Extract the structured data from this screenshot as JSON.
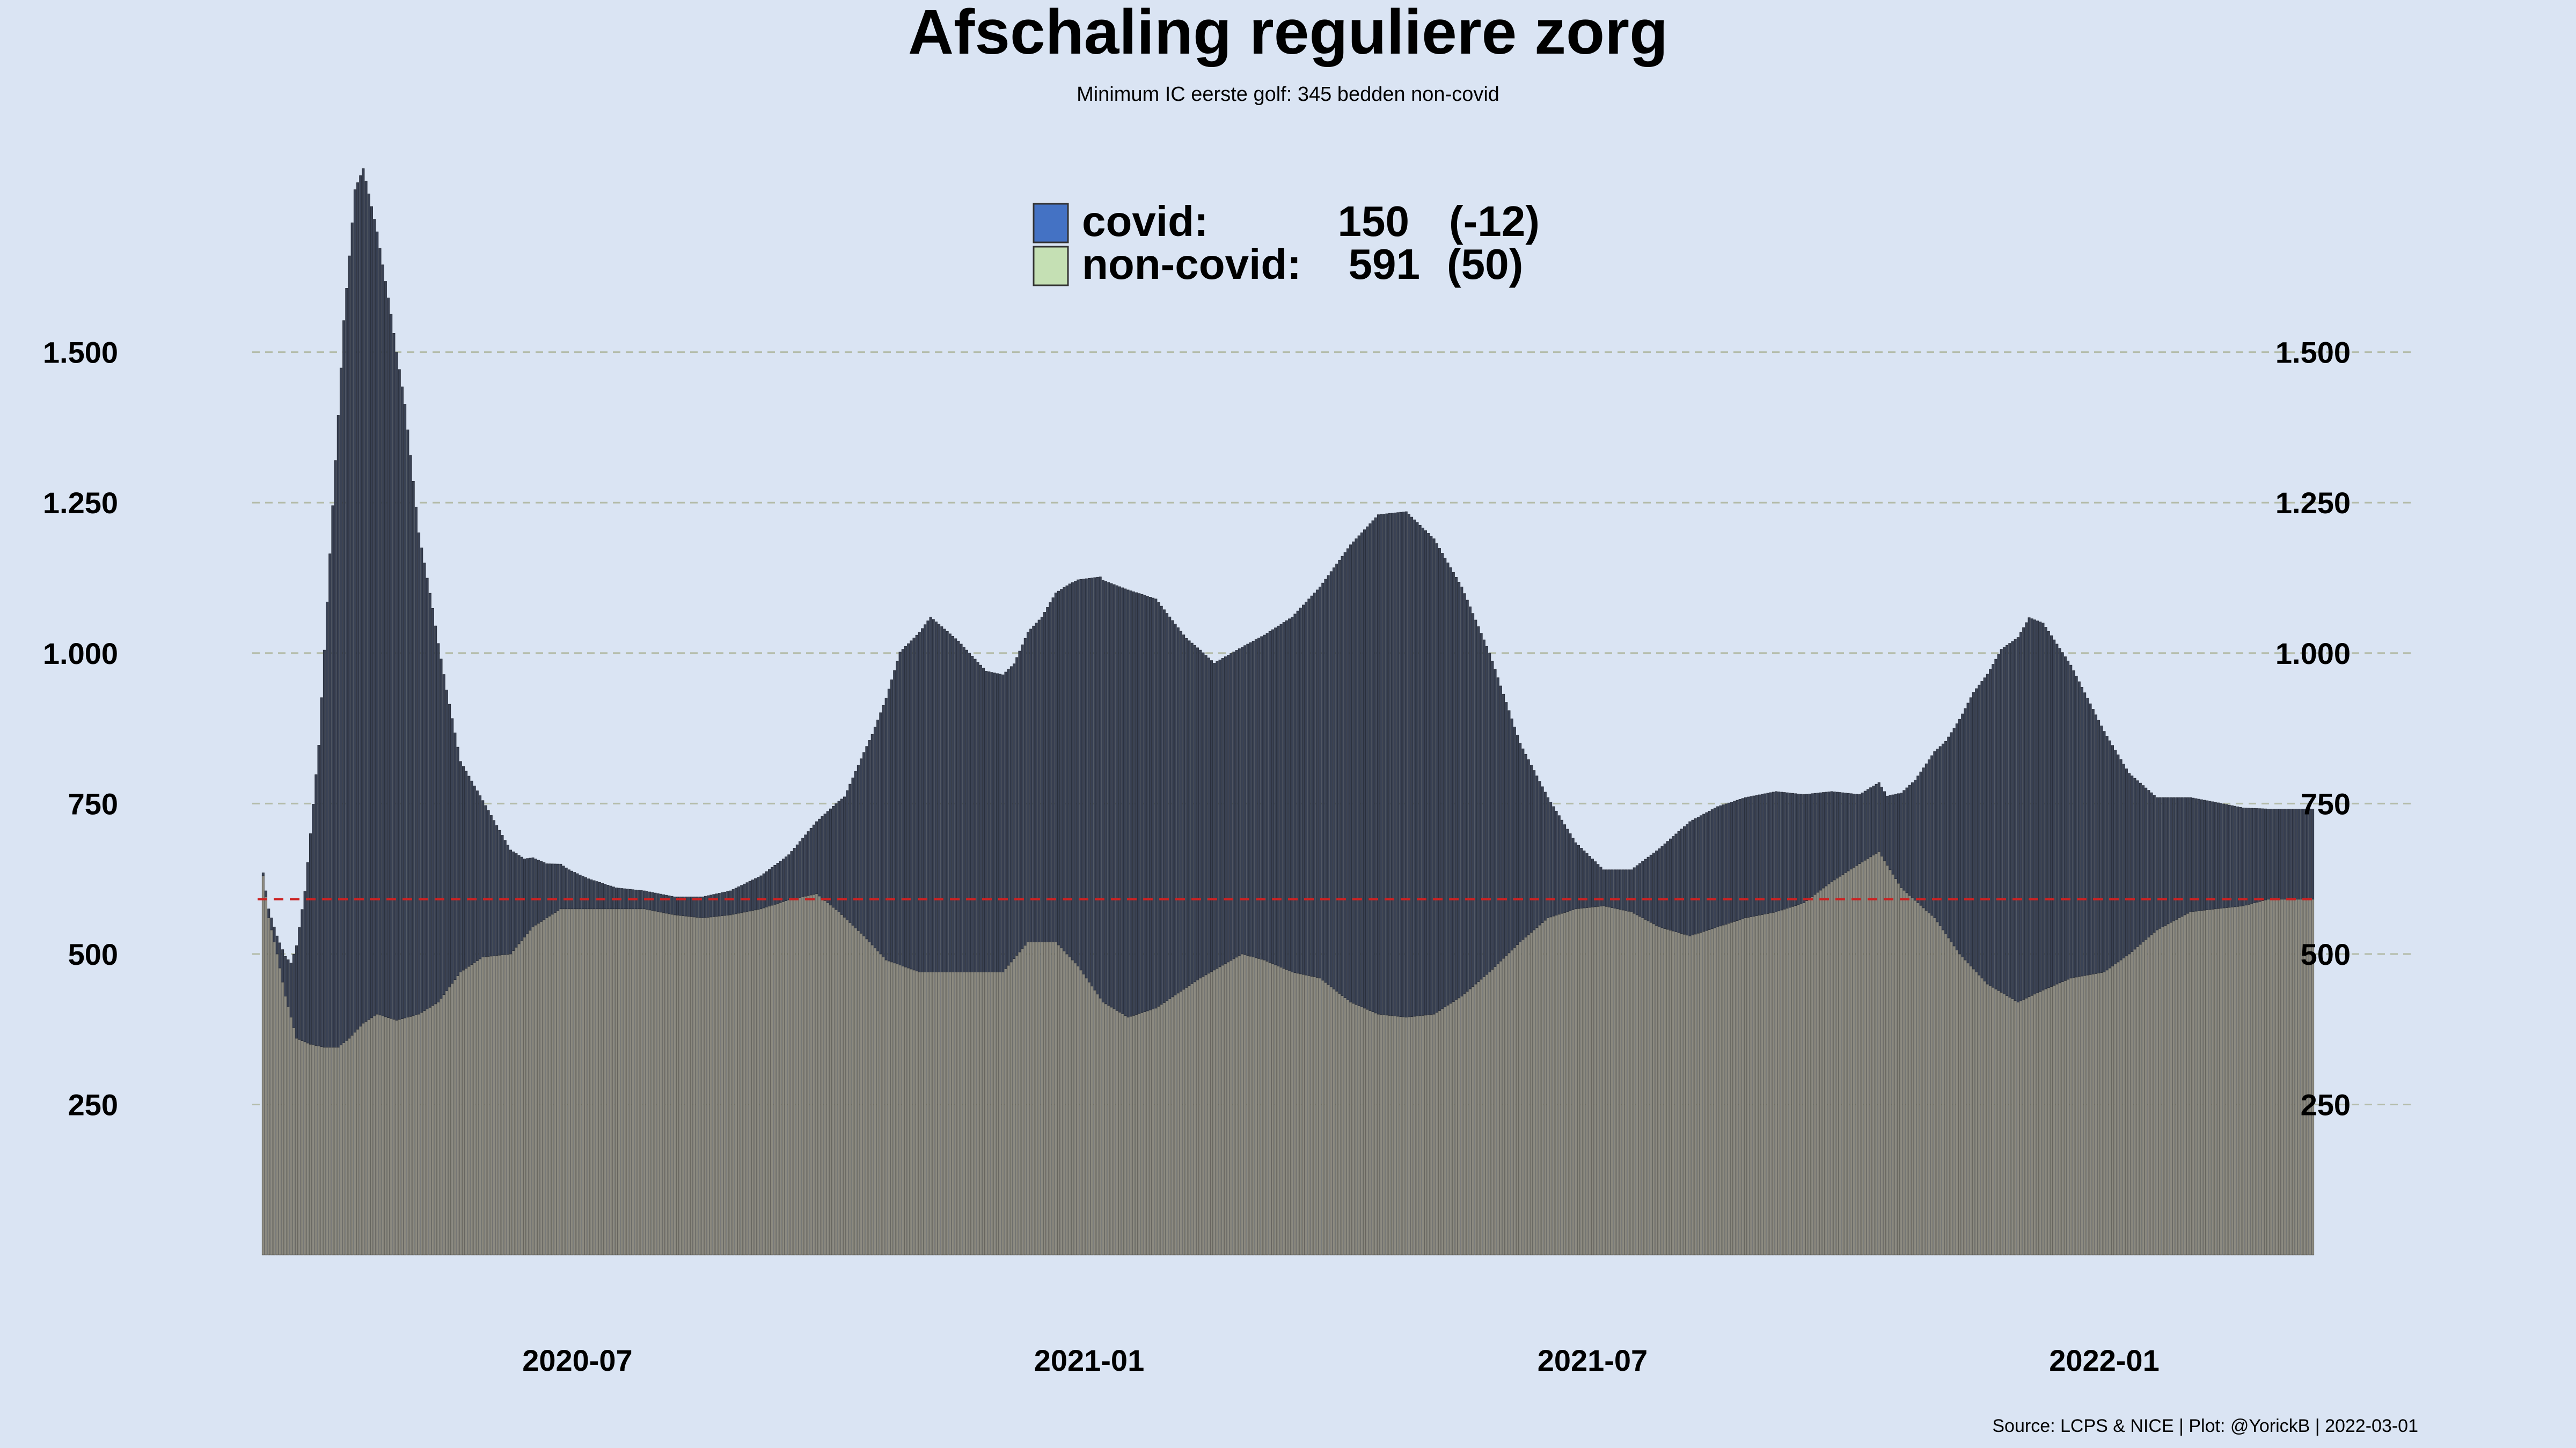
{
  "chart_data": {
    "type": "bar",
    "title": "Afschaling reguliere zorg",
    "subtitle": "Minimum IC eerste golf: 345 bedden non-covid",
    "caption": "Source: LCPS & NICE | Plot: @YorickB |  2022-03-01",
    "stacked": true,
    "ylim": [
      0,
      1800
    ],
    "y_ticks": [
      250,
      500,
      750,
      1000,
      1250,
      1500
    ],
    "y_tick_labels": [
      "250",
      "500",
      "750",
      "1.000",
      "1.250",
      "1.500"
    ],
    "x_range": [
      "2020-03-08",
      "2022-03-19"
    ],
    "x_ticks": [
      {
        "date": "2020-07-01",
        "label": "2020-07"
      },
      {
        "date": "2021-01-01",
        "label": "2021-01"
      },
      {
        "date": "2021-07-01",
        "label": "2021-07"
      },
      {
        "date": "2022-01-01",
        "label": "2022-01"
      }
    ],
    "grid": "horizontal dashed",
    "reference_line": {
      "value": 591,
      "style": "dashed",
      "color": "#cc2222"
    },
    "legend": {
      "placement": "top-center",
      "entries": [
        {
          "label": "covid:",
          "value": "150",
          "change": "(-12)",
          "color": "#4472c4"
        },
        {
          "label": "non-covid:",
          "value": "591",
          "change": "(50)",
          "color": "#c5e0b4"
        }
      ]
    },
    "colors": {
      "covid_bar": "#3a4254",
      "noncovid_bar": "#8c8a80",
      "background": "#dae4f3"
    },
    "series": [
      {
        "name": "non-covid",
        "points": [
          [
            "2020-03-10",
            630
          ],
          [
            "2020-03-12",
            560
          ],
          [
            "2020-03-15",
            500
          ],
          [
            "2020-03-18",
            430
          ],
          [
            "2020-03-22",
            360
          ],
          [
            "2020-03-27",
            350
          ],
          [
            "2020-04-01",
            345
          ],
          [
            "2020-04-06",
            345
          ],
          [
            "2020-04-10",
            360
          ],
          [
            "2020-04-15",
            385
          ],
          [
            "2020-04-20",
            400
          ],
          [
            "2020-04-27",
            390
          ],
          [
            "2020-05-05",
            400
          ],
          [
            "2020-05-12",
            420
          ],
          [
            "2020-05-20",
            470
          ],
          [
            "2020-05-28",
            495
          ],
          [
            "2020-06-07",
            500
          ],
          [
            "2020-06-15",
            545
          ],
          [
            "2020-06-25",
            575
          ],
          [
            "2020-07-05",
            575
          ],
          [
            "2020-07-15",
            575
          ],
          [
            "2020-07-25",
            575
          ],
          [
            "2020-08-05",
            565
          ],
          [
            "2020-08-15",
            560
          ],
          [
            "2020-08-25",
            565
          ],
          [
            "2020-09-05",
            575
          ],
          [
            "2020-09-15",
            590
          ],
          [
            "2020-09-25",
            600
          ],
          [
            "2020-10-03",
            570
          ],
          [
            "2020-10-12",
            530
          ],
          [
            "2020-10-20",
            490
          ],
          [
            "2020-11-01",
            470
          ],
          [
            "2020-11-15",
            470
          ],
          [
            "2020-12-01",
            470
          ],
          [
            "2020-12-10",
            520
          ],
          [
            "2020-12-20",
            520
          ],
          [
            "2020-12-28",
            480
          ],
          [
            "2021-01-06",
            420
          ],
          [
            "2021-01-15",
            395
          ],
          [
            "2021-01-25",
            410
          ],
          [
            "2021-02-10",
            460
          ],
          [
            "2021-02-25",
            500
          ],
          [
            "2021-03-05",
            490
          ],
          [
            "2021-03-15",
            470
          ],
          [
            "2021-03-25",
            460
          ],
          [
            "2021-04-05",
            420
          ],
          [
            "2021-04-15",
            400
          ],
          [
            "2021-04-25",
            395
          ],
          [
            "2021-05-05",
            400
          ],
          [
            "2021-05-15",
            430
          ],
          [
            "2021-05-25",
            470
          ],
          [
            "2021-06-05",
            520
          ],
          [
            "2021-06-15",
            560
          ],
          [
            "2021-06-25",
            575
          ],
          [
            "2021-07-05",
            580
          ],
          [
            "2021-07-15",
            570
          ],
          [
            "2021-07-25",
            545
          ],
          [
            "2021-08-05",
            530
          ],
          [
            "2021-08-15",
            545
          ],
          [
            "2021-08-25",
            560
          ],
          [
            "2021-09-05",
            570
          ],
          [
            "2021-09-15",
            585
          ],
          [
            "2021-09-25",
            620
          ],
          [
            "2021-10-05",
            650
          ],
          [
            "2021-10-12",
            670
          ],
          [
            "2021-10-20",
            610
          ],
          [
            "2021-11-01",
            560
          ],
          [
            "2021-11-10",
            500
          ],
          [
            "2021-11-20",
            450
          ],
          [
            "2021-12-01",
            420
          ],
          [
            "2021-12-10",
            440
          ],
          [
            "2021-12-20",
            460
          ],
          [
            "2022-01-01",
            470
          ],
          [
            "2022-01-10",
            500
          ],
          [
            "2022-01-20",
            540
          ],
          [
            "2022-02-01",
            570
          ],
          [
            "2022-02-10",
            575
          ],
          [
            "2022-02-20",
            580
          ],
          [
            "2022-03-01",
            591
          ],
          [
            "2022-03-18",
            591
          ]
        ]
      },
      {
        "name": "covid",
        "points": [
          [
            "2020-03-10",
            5
          ],
          [
            "2020-03-15",
            30
          ],
          [
            "2020-03-20",
            90
          ],
          [
            "2020-03-25",
            250
          ],
          [
            "2020-03-30",
            500
          ],
          [
            "2020-04-04",
            900
          ],
          [
            "2020-04-08",
            1200
          ],
          [
            "2020-04-12",
            1400
          ],
          [
            "2020-04-15",
            1420
          ],
          [
            "2020-04-20",
            1300
          ],
          [
            "2020-04-25",
            1170
          ],
          [
            "2020-04-30",
            1020
          ],
          [
            "2020-05-05",
            800
          ],
          [
            "2020-05-10",
            660
          ],
          [
            "2020-05-15",
            500
          ],
          [
            "2020-05-20",
            350
          ],
          [
            "2020-05-28",
            260
          ],
          [
            "2020-06-05",
            190
          ],
          [
            "2020-06-12",
            130
          ],
          [
            "2020-06-20",
            90
          ],
          [
            "2020-06-28",
            65
          ],
          [
            "2020-07-05",
            50
          ],
          [
            "2020-07-15",
            35
          ],
          [
            "2020-07-25",
            30
          ],
          [
            "2020-08-05",
            30
          ],
          [
            "2020-08-15",
            35
          ],
          [
            "2020-08-25",
            40
          ],
          [
            "2020-09-05",
            55
          ],
          [
            "2020-09-15",
            75
          ],
          [
            "2020-09-25",
            120
          ],
          [
            "2020-10-05",
            200
          ],
          [
            "2020-10-15",
            350
          ],
          [
            "2020-10-25",
            520
          ],
          [
            "2020-11-05",
            590
          ],
          [
            "2020-11-15",
            550
          ],
          [
            "2020-11-25",
            500
          ],
          [
            "2020-12-05",
            490
          ],
          [
            "2020-12-15",
            540
          ],
          [
            "2020-12-25",
            620
          ],
          [
            "2021-01-05",
            700
          ],
          [
            "2021-01-15",
            710
          ],
          [
            "2021-01-25",
            680
          ],
          [
            "2021-02-05",
            580
          ],
          [
            "2021-02-15",
            510
          ],
          [
            "2021-02-25",
            510
          ],
          [
            "2021-03-05",
            540
          ],
          [
            "2021-03-15",
            590
          ],
          [
            "2021-03-25",
            650
          ],
          [
            "2021-04-05",
            760
          ],
          [
            "2021-04-15",
            830
          ],
          [
            "2021-04-25",
            840
          ],
          [
            "2021-05-05",
            790
          ],
          [
            "2021-05-15",
            680
          ],
          [
            "2021-05-25",
            530
          ],
          [
            "2021-06-05",
            330
          ],
          [
            "2021-06-15",
            200
          ],
          [
            "2021-06-25",
            110
          ],
          [
            "2021-07-05",
            60
          ],
          [
            "2021-07-15",
            70
          ],
          [
            "2021-07-25",
            130
          ],
          [
            "2021-08-05",
            190
          ],
          [
            "2021-08-15",
            200
          ],
          [
            "2021-08-25",
            200
          ],
          [
            "2021-09-05",
            200
          ],
          [
            "2021-09-15",
            180
          ],
          [
            "2021-09-25",
            150
          ],
          [
            "2021-10-05",
            115
          ],
          [
            "2021-10-15",
            115
          ],
          [
            "2021-10-25",
            200
          ],
          [
            "2021-11-05",
            320
          ],
          [
            "2021-11-15",
            460
          ],
          [
            "2021-11-25",
            570
          ],
          [
            "2021-12-05",
            630
          ],
          [
            "2021-12-10",
            610
          ],
          [
            "2021-12-20",
            520
          ],
          [
            "2022-01-01",
            400
          ],
          [
            "2022-01-10",
            300
          ],
          [
            "2022-01-20",
            220
          ],
          [
            "2022-02-01",
            190
          ],
          [
            "2022-02-15",
            170
          ],
          [
            "2022-03-01",
            150
          ],
          [
            "2022-03-18",
            150
          ]
        ]
      }
    ]
  }
}
